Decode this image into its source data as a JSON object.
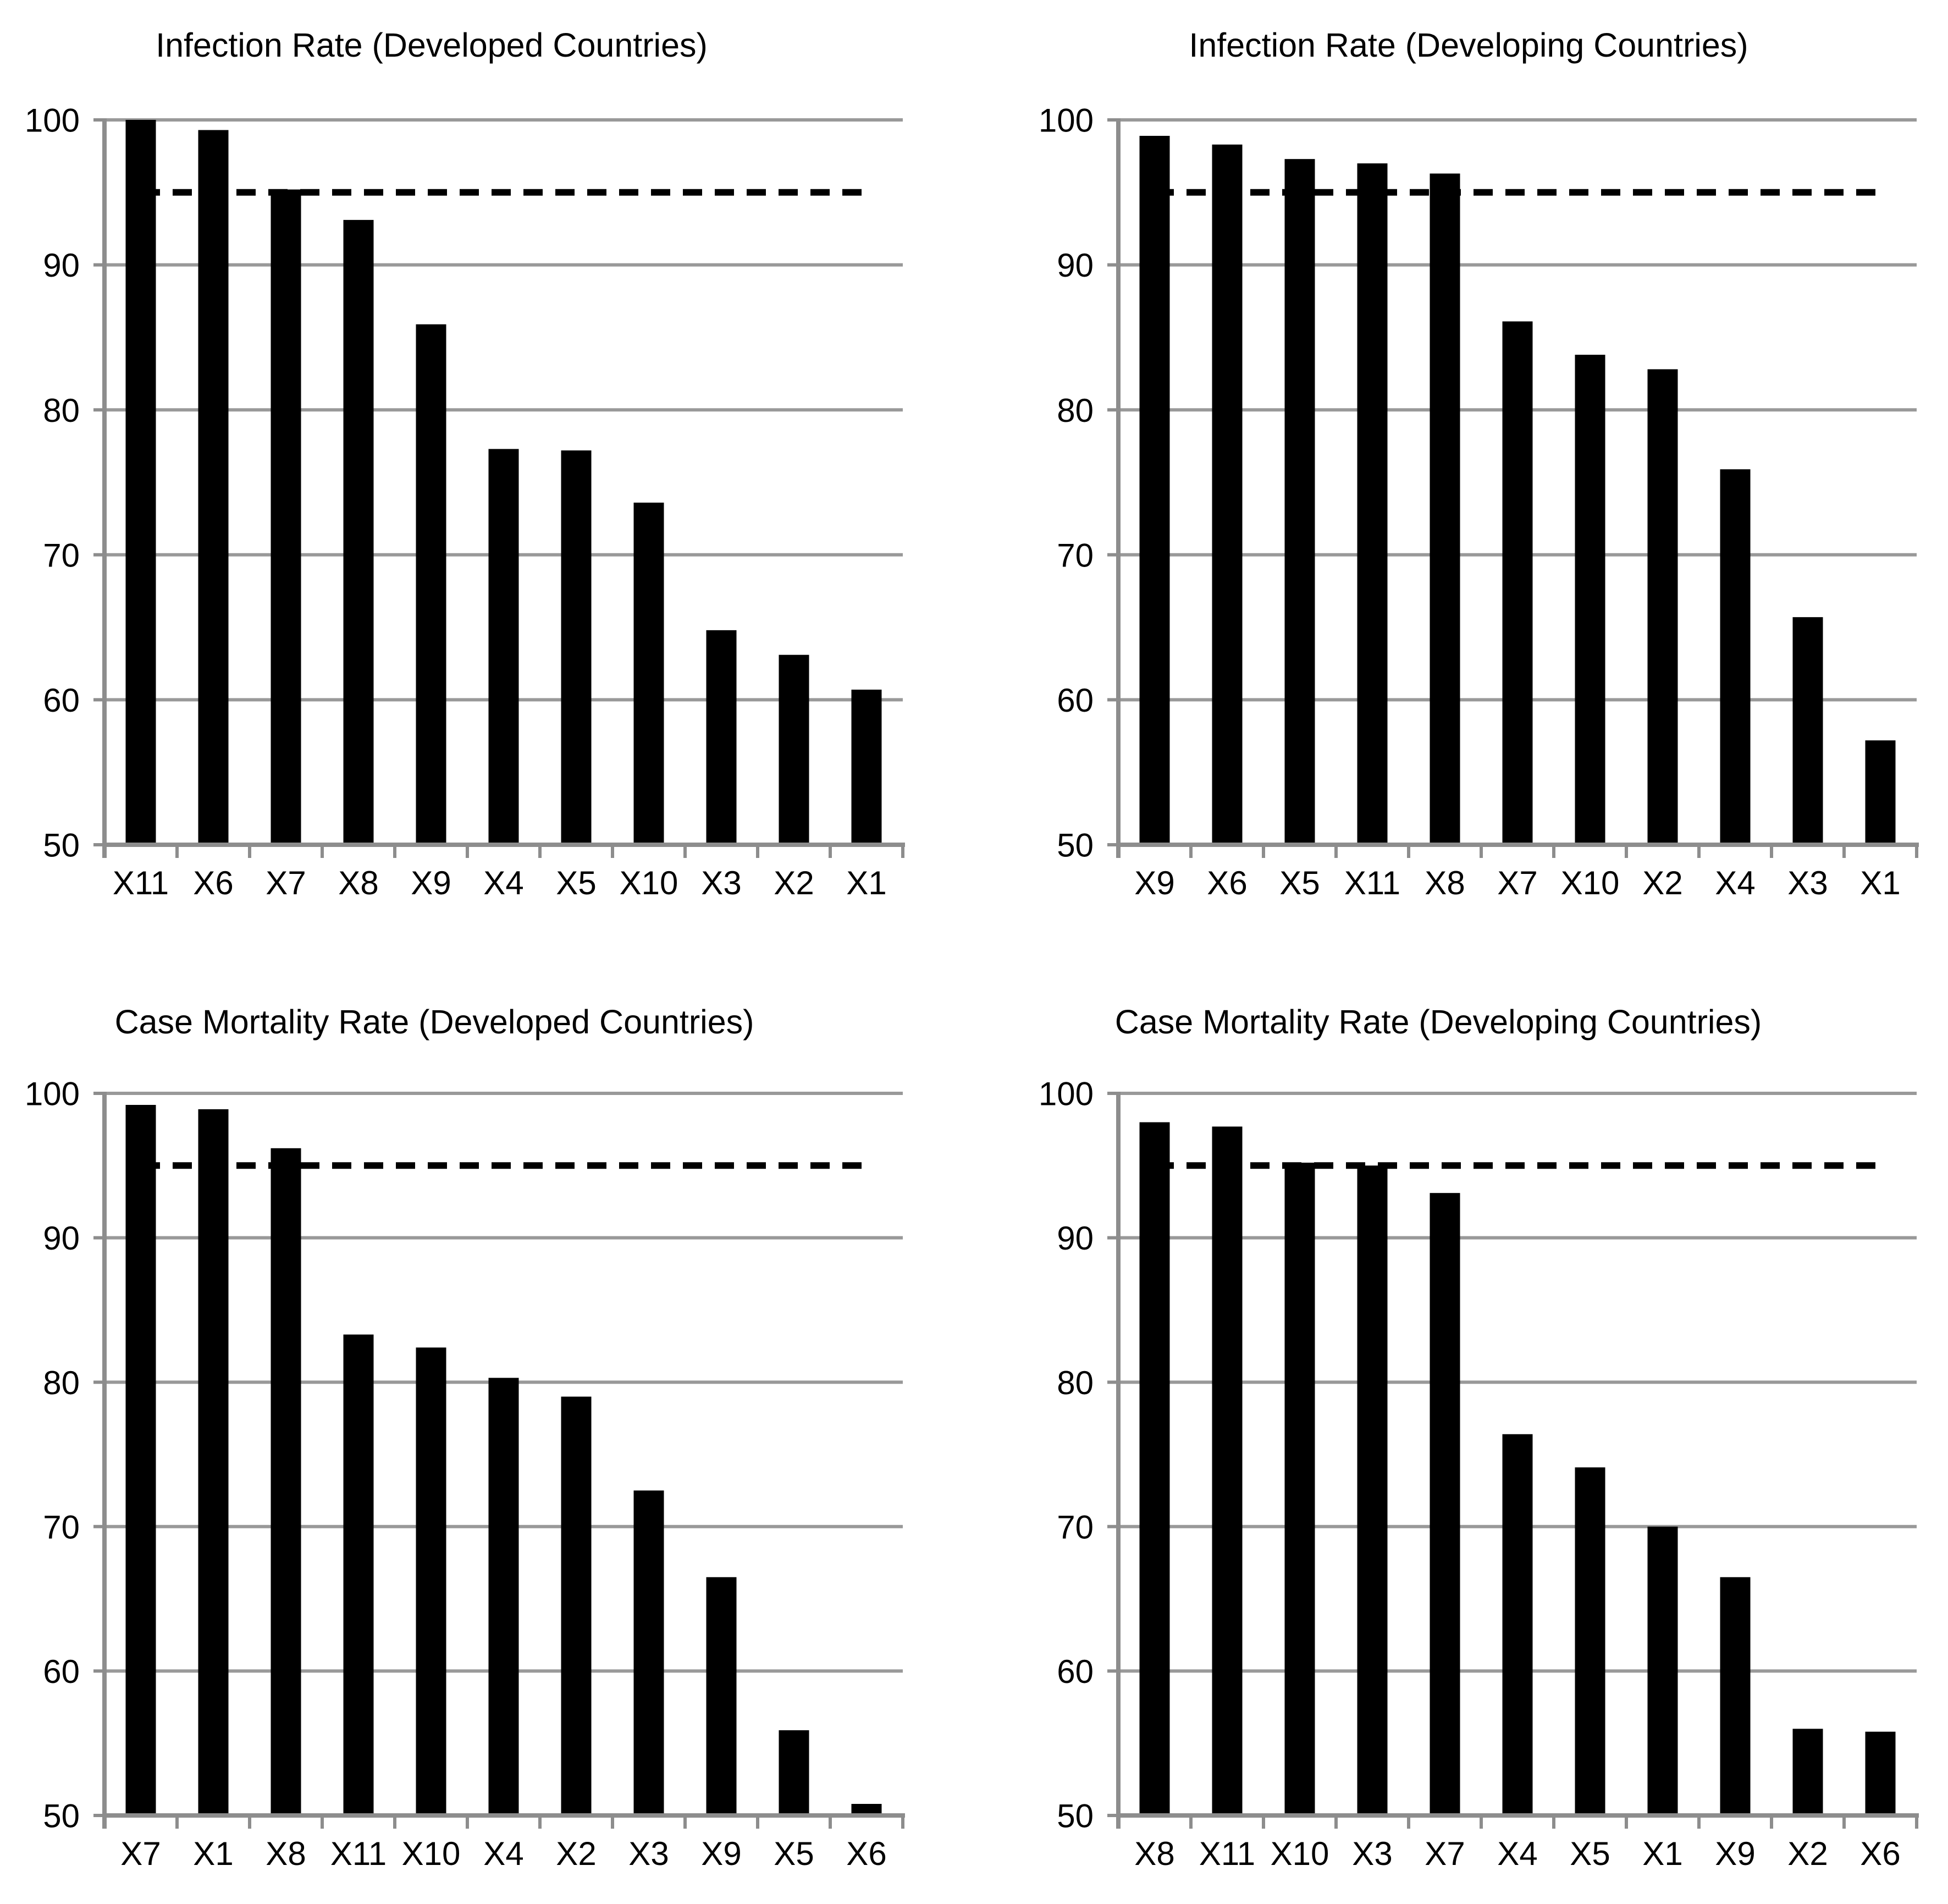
{
  "page": {
    "background_color": "#ffffff",
    "text_color": "#000000",
    "bar_color": "#000000",
    "gridline_color": "#999999",
    "axis_color": "#8d8d8d",
    "benchmark_line_color": "#000000",
    "layout": "2x2 grid of bar charts"
  },
  "chart_data": [
    {
      "type": "bar",
      "title": "Infection Rate (Developed Countries)",
      "categories": [
        "X11",
        "X6",
        "X7",
        "X8",
        "X9",
        "X4",
        "X5",
        "X10",
        "X3",
        "X2",
        "X1"
      ],
      "values": [
        100,
        99.3,
        95.2,
        93.1,
        85.9,
        77.3,
        77.2,
        73.6,
        64.8,
        63.1,
        60.7
      ],
      "xlabel": "",
      "ylabel": "",
      "ylim": [
        50,
        100
      ],
      "yticks": [
        50,
        60,
        70,
        80,
        90,
        100
      ],
      "benchmark_line": {
        "value": 95,
        "style": "dashed",
        "color": "#000000"
      },
      "grid": "horizontal",
      "legend": "none",
      "bar_color": "#000000"
    },
    {
      "type": "bar",
      "title": "Infection Rate (Developing Countries)",
      "categories": [
        "X9",
        "X6",
        "X5",
        "X11",
        "X8",
        "X7",
        "X10",
        "X2",
        "X4",
        "X3",
        "X1"
      ],
      "values": [
        98.9,
        98.3,
        97.3,
        97.0,
        96.3,
        86.1,
        83.8,
        82.8,
        75.9,
        65.7,
        57.2
      ],
      "xlabel": "",
      "ylabel": "",
      "ylim": [
        50,
        100
      ],
      "yticks": [
        50,
        60,
        70,
        80,
        90,
        100
      ],
      "benchmark_line": {
        "value": 95,
        "style": "dashed",
        "color": "#000000"
      },
      "grid": "horizontal",
      "legend": "none",
      "bar_color": "#000000"
    },
    {
      "type": "bar",
      "title": "Case Mortality Rate (Developed Countries)",
      "categories": [
        "X7",
        "X1",
        "X8",
        "X11",
        "X10",
        "X4",
        "X2",
        "X3",
        "X9",
        "X5",
        "X6"
      ],
      "values": [
        99.2,
        98.9,
        96.2,
        83.3,
        82.4,
        80.3,
        79.0,
        72.5,
        66.5,
        55.9,
        50.8
      ],
      "xlabel": "",
      "ylabel": "",
      "ylim": [
        50,
        100
      ],
      "yticks": [
        50,
        60,
        70,
        80,
        90,
        100
      ],
      "benchmark_line": {
        "value": 95,
        "style": "dashed",
        "color": "#000000"
      },
      "grid": "horizontal",
      "legend": "none",
      "bar_color": "#000000"
    },
    {
      "type": "bar",
      "title": "Case Mortality Rate (Developing Countries)",
      "categories": [
        "X8",
        "X11",
        "X10",
        "X3",
        "X7",
        "X4",
        "X5",
        "X1",
        "X9",
        "X2",
        "X6"
      ],
      "values": [
        98.0,
        97.7,
        95.2,
        95.0,
        93.1,
        76.4,
        74.1,
        70.0,
        66.5,
        56.0,
        55.8
      ],
      "xlabel": "",
      "ylabel": "",
      "ylim": [
        50,
        100
      ],
      "yticks": [
        50,
        60,
        70,
        80,
        90,
        100
      ],
      "benchmark_line": {
        "value": 95,
        "style": "dashed",
        "color": "#000000"
      },
      "grid": "horizontal",
      "legend": "none",
      "bar_color": "#000000"
    }
  ]
}
